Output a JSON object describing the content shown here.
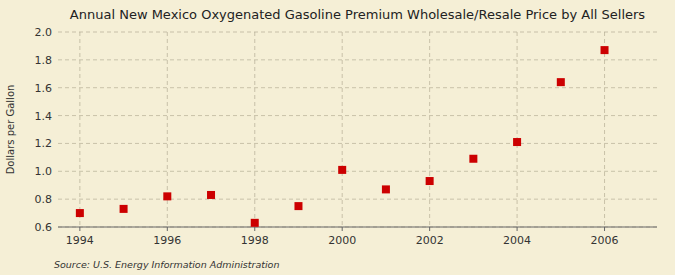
{
  "chart_data": {
    "type": "scatter",
    "title": "Annual New Mexico Oxygenated Gasoline Premium Wholesale/Resale Price by All Sellers",
    "ylabel": "Dollars per Gallon",
    "annotations": [
      "Source: U.S. Energy Information Administration"
    ],
    "x": [
      1994,
      1995,
      1996,
      1997,
      1998,
      1999,
      2000,
      2001,
      2002,
      2003,
      2004,
      2005,
      2006
    ],
    "values": [
      0.7,
      0.73,
      0.82,
      0.83,
      0.63,
      0.75,
      1.01,
      0.87,
      0.93,
      1.09,
      1.21,
      1.64,
      1.87
    ],
    "color": "#cc0000",
    "marker": "square",
    "xlim": [
      1993.5,
      2007.2
    ],
    "xticks": [
      1994,
      1996,
      1998,
      2000,
      2002,
      2004,
      2006
    ],
    "ylim": [
      0.6,
      2.0
    ],
    "yticks": [
      0.6,
      0.8,
      {
        "value": 1.0,
        "label": "1.0"
      },
      1.2,
      1.4,
      1.6,
      1.8,
      {
        "value": 2.0,
        "label": "2.0"
      }
    ],
    "grid": true
  }
}
